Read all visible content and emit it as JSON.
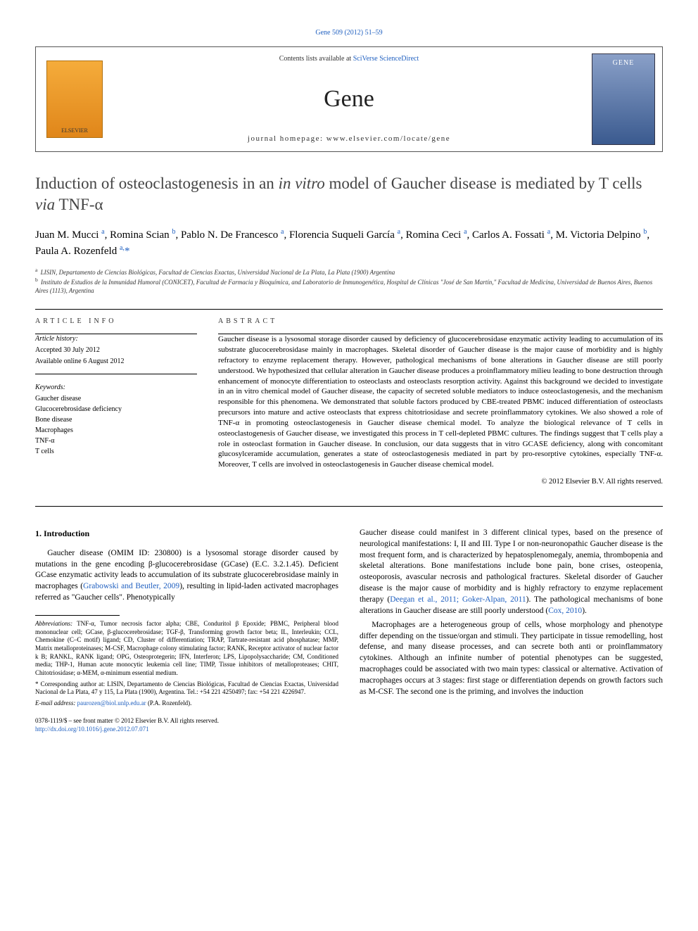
{
  "citation": "Gene 509 (2012) 51–59",
  "header": {
    "contents_prefix": "Contents lists available at ",
    "contents_link": "SciVerse ScienceDirect",
    "journal": "Gene",
    "homepage_label": "journal homepage: www.elsevier.com/locate/gene",
    "elsevier_label": "ELSEVIER",
    "cover_label": "GENE"
  },
  "title": "Induction of osteoclastogenesis in an in vitro model of Gaucher disease is mediated by T cells via TNF-α",
  "authors_html": "Juan M. Mucci <sup>a</sup>, Romina Scian <sup>b</sup>, Pablo N. De Francesco <sup>a</sup>, Florencia Suqueli García <sup>a</sup>, Romina Ceci <sup>a</sup>, Carlos A. Fossati <sup>a</sup>, M. Victoria Delpino <sup>b</sup>, Paula A. Rozenfeld <sup>a,</sup><span class=\"ast\">*</span>",
  "affiliations": {
    "a": "LISIN, Departamento de Ciencias Biológicas, Facultad de Ciencias Exactas, Universidad Nacional de La Plata, La Plata (1900) Argentina",
    "b": "Instituto de Estudios de la Inmunidad Humoral (CONICET), Facultad de Farmacia y Bioquímica, and Laboratorio de Inmunogenética, Hospital de Clínicas \"José de San Martín,\" Facultad de Medicina, Universidad de Buenos Aires, Buenos Aires (1113), Argentina"
  },
  "meta": {
    "article_info_label": "ARTICLE INFO",
    "abstract_label": "ABSTRACT",
    "history_head": "Article history:",
    "accepted": "Accepted 30 July 2012",
    "online": "Available online 6 August 2012",
    "keywords_head": "Keywords:",
    "keywords": [
      "Gaucher disease",
      "Glucocerebrosidase deficiency",
      "Bone disease",
      "Macrophages",
      "TNF-α",
      "T cells"
    ]
  },
  "abstract": "Gaucher disease is a lysosomal storage disorder caused by deficiency of glucocerebrosidase enzymatic activity leading to accumulation of its substrate glucocerebrosidase mainly in macrophages. Skeletal disorder of Gaucher disease is the major cause of morbidity and is highly refractory to enzyme replacement therapy. However, pathological mechanisms of bone alterations in Gaucher disease are still poorly understood. We hypothesized that cellular alteration in Gaucher disease produces a proinflammatory milieu leading to bone destruction through enhancement of monocyte differentiation to osteoclasts and osteoclasts resorption activity. Against this background we decided to investigate in an in vitro chemical model of Gaucher disease, the capacity of secreted soluble mediators to induce osteoclastogenesis, and the mechanism responsible for this phenomena. We demonstrated that soluble factors produced by CBE-treated PBMC induced differentiation of osteoclasts precursors into mature and active osteoclasts that express chitotriosidase and secrete proinflammatory cytokines. We also showed a role of TNF-α in promoting osteoclastogenesis in Gaucher disease chemical model. To analyze the biological relevance of T cells in osteoclastogenesis of Gaucher disease, we investigated this process in T cell-depleted PBMC cultures. The findings suggest that T cells play a role in osteoclast formation in Gaucher disease. In conclusion, our data suggests that in vitro GCASE deficiency, along with concomitant glucosylceramide accumulation, generates a state of osteoclastogenesis mediated in part by pro-resorptive cytokines, especially TNF-α. Moreover, T cells are involved in osteoclastogenesis in Gaucher disease chemical model.",
  "copyright": "© 2012 Elsevier B.V. All rights reserved.",
  "body": {
    "intro_head": "1. Introduction",
    "left_paras": [
      "Gaucher disease (OMIM ID: 230800) is a lysosomal storage disorder caused by mutations in the gene encoding β-glucocerebrosidase (GCase) (E.C. 3.2.1.45). Deficient GCase enzymatic activity leads to accumulation of its substrate glucocerebrosidase mainly in macrophages (Grabowski and Beutler, 2009), resulting in lipid-laden activated macrophages referred as \"Gaucher cells\". Phenotypically"
    ],
    "right_paras": [
      "Gaucher disease could manifest in 3 different clinical types, based on the presence of neurological manifestations: I, II and III. Type I or non-neuronopathic Gaucher disease is the most frequent form, and is characterized by hepatosplenomegaly, anemia, thrombopenia and skeletal alterations. Bone manifestations include bone pain, bone crises, osteopenia, osteoporosis, avascular necrosis and pathological fractures. Skeletal disorder of Gaucher disease is the major cause of morbidity and is highly refractory to enzyme replacement therapy (Deegan et al., 2011; Goker-Alpan, 2011). The pathological mechanisms of bone alterations in Gaucher disease are still poorly understood (Cox, 2010).",
      "Macrophages are a heterogeneous group of cells, whose morphology and phenotype differ depending on the tissue/organ and stimuli. They participate in tissue remodelling, host defense, and many disease processes, and can secrete both anti or proinflammatory cytokines. Although an infinite number of potential phenotypes can be suggested, macrophages could be associated with two main types: classical or alternative. Activation of macrophages occurs at 3 stages: first stage or differentiation depends on growth factors such as M-CSF. The second one is the priming, and involves the induction"
    ]
  },
  "footnotes": {
    "abbrev": "Abbreviations: TNF-α, Tumor necrosis factor alpha; CBE, Conduritol β Epoxide; PBMC, Peripheral blood mononuclear cell; GCase, β-glucocerebrosidase; TGF-β, Transforming growth factor beta; IL, Interleukin; CCL, Chemokine (C–C motif) ligand; CD, Cluster of differentiation; TRAP, Tartrate-resistant acid phosphatase; MMP, Matrix metalloproteinases; M-CSF, Macrophage colony stimulating factor; RANK, Receptor activator of nuclear factor k B; RANKL, RANK ligand; OPG, Osteoprotegerin; IFN, Interferon; LPS, Lipopolysaccharide; CM, Conditioned media; THP-1, Human acute monocytic leukemia cell line; TIMP, Tissue inhibitors of metalloproteases; CHIT, Chitotriosidase; α-MEM, α-minimum essential medium.",
    "corresponding": "* Corresponding author at: LISIN, Departamento de Ciencias Biológicas, Facultad de Ciencias Exactas, Universidad Nacional de La Plata, 47 y 115, La Plata (1900), Argentina. Tel.: +54 221 4250497; fax: +54 221 4226947.",
    "email_label": "E-mail address: ",
    "email": "paurozen@biol.unlp.edu.ar",
    "email_suffix": " (P.A. Rozenfeld)."
  },
  "footer": {
    "issn": "0378-1119/$ – see front matter © 2012 Elsevier B.V. All rights reserved.",
    "doi": "http://dx.doi.org/10.1016/j.gene.2012.07.071"
  },
  "colors": {
    "link": "#2060c0",
    "text": "#000000",
    "title": "#444444"
  }
}
